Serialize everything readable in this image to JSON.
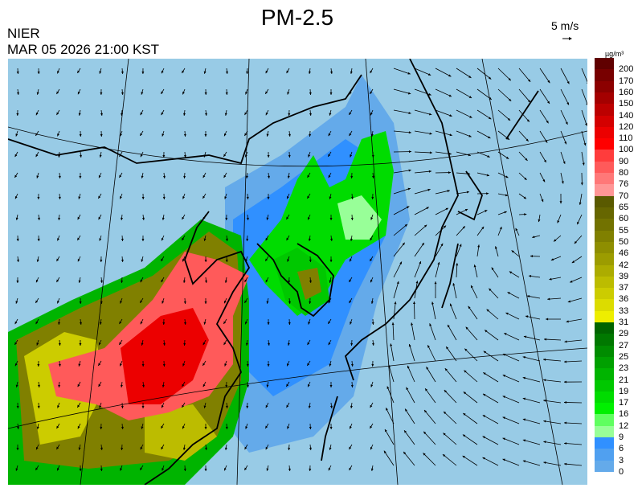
{
  "header": {
    "title": "PM-2.5",
    "organization": "NIER",
    "datetime": "MAR 05 2026 21:00 KST",
    "wind_scale_label": "5 m/s"
  },
  "colorbar": {
    "units": "µg/m³",
    "labels": [
      "200",
      "170",
      "160",
      "150",
      "140",
      "120",
      "110",
      "100",
      "90",
      "80",
      "76",
      "70",
      "65",
      "60",
      "55",
      "50",
      "46",
      "42",
      "39",
      "37",
      "36",
      "33",
      "31",
      "29",
      "27",
      "25",
      "23",
      "21",
      "19",
      "17",
      "16",
      "12",
      "9",
      "6",
      "3",
      "0"
    ],
    "colors": [
      "#600000",
      "#780000",
      "#8c0000",
      "#a40000",
      "#bc0000",
      "#d40000",
      "#ec0000",
      "#ff0000",
      "#ff3c3c",
      "#ff5a5a",
      "#ff7878",
      "#ff9696",
      "#5a5a00",
      "#666600",
      "#727200",
      "#808000",
      "#8e8e00",
      "#9c9c00",
      "#acac00",
      "#bcbc00",
      "#cccc00",
      "#dcdc00",
      "#eeee00",
      "#006400",
      "#007800",
      "#008c00",
      "#00a000",
      "#00b400",
      "#00c800",
      "#00dc00",
      "#00f000",
      "#60ff60",
      "#98ff98",
      "#3090ff",
      "#50a0f0",
      "#64aaea",
      "#88bfe6",
      "#98cbe6"
    ]
  },
  "map": {
    "background_color": "#98cbe6",
    "field": "PM-2.5 concentration with wind vectors",
    "region": "East Asia (China, Korea, Japan)"
  }
}
